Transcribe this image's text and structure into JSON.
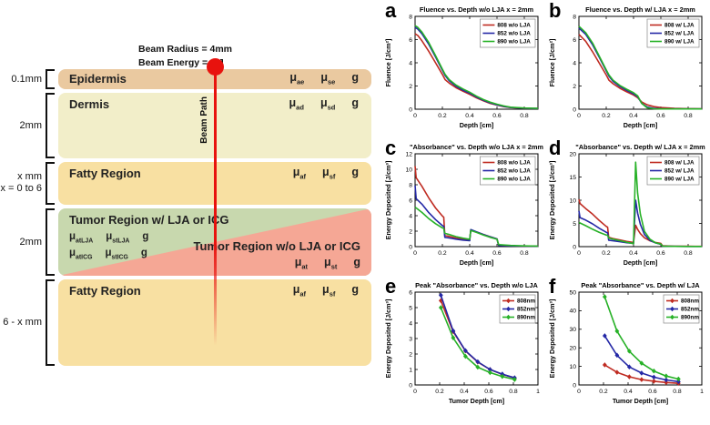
{
  "diagram": {
    "beam": {
      "line1": "Beam Radius = 4mm",
      "line2": "Beam Energy = 1 J",
      "path_label": "Beam Path"
    },
    "layers": [
      {
        "label": "Epidermis",
        "bracket_lines": [
          "0.1mm"
        ],
        "coeffs": [
          [
            "μ",
            "ae"
          ],
          [
            "μ",
            "se"
          ],
          [
            "g",
            ""
          ]
        ]
      },
      {
        "label": "Dermis",
        "bracket_lines": [
          "2mm"
        ],
        "coeffs": [
          [
            "μ",
            "ad"
          ],
          [
            "μ",
            "sd"
          ],
          [
            "g",
            ""
          ]
        ]
      },
      {
        "label": "Fatty Region",
        "bracket_lines": [
          "x mm",
          "x = 0 to 6"
        ],
        "coeffs": [
          [
            "μ",
            "af"
          ],
          [
            "μ",
            "sf"
          ],
          [
            "g",
            ""
          ]
        ]
      },
      {
        "bracket_lines": [
          "2mm"
        ],
        "left": {
          "title": "Tumor Region w/ LJA or ICG",
          "rows": [
            [
              [
                "μ",
                "atLJA"
              ],
              [
                "μ",
                "stLJA"
              ],
              [
                "g",
                ""
              ]
            ],
            [
              [
                "μ",
                "atICG"
              ],
              [
                "μ",
                "stICG"
              ],
              [
                "g",
                ""
              ]
            ]
          ]
        },
        "right": {
          "title": "Tumor Region w/o LJA or ICG",
          "rows": [
            [
              [
                "μ",
                "at"
              ],
              [
                "μ",
                "st"
              ],
              [
                "g",
                ""
              ]
            ]
          ]
        }
      },
      {
        "label": "Fatty Region",
        "bracket_lines": [
          "6 - x mm"
        ],
        "coeffs": [
          [
            "μ",
            "af"
          ],
          [
            "μ",
            "sf"
          ],
          [
            "g",
            ""
          ]
        ]
      }
    ],
    "colors": {
      "epidermis": "#eac9a0",
      "dermis": "#f2eec9",
      "fatty": "#f8e0a2",
      "tumor_with": "#c8d8ae",
      "tumor_without": "#f5a795",
      "beam": "#e8120e"
    }
  },
  "chart_data": [
    {
      "panel_label": "a",
      "type": "line",
      "title": "Fluence vs. Depth w/o LJA x = 2mm",
      "xlabel": "Depth [cm]",
      "ylabel": "Fluence [J/cm²]",
      "xlim": [
        0,
        0.9
      ],
      "ylim": [
        0,
        8
      ],
      "xticks": [
        0,
        0.2,
        0.4,
        0.6,
        0.8
      ],
      "yticks": [
        0,
        2,
        4,
        6,
        8
      ],
      "markers": false,
      "legend_position": "top-right",
      "series": [
        {
          "name": "808 w/o LJA",
          "color": "#bf2b21",
          "x": [
            0,
            0.02,
            0.05,
            0.1,
            0.15,
            0.2,
            0.22,
            0.25,
            0.3,
            0.35,
            0.4,
            0.45,
            0.5,
            0.55,
            0.6,
            0.65,
            0.7,
            0.8,
            0.9
          ],
          "y": [
            6.5,
            6.35,
            5.9,
            5.0,
            4.0,
            3.0,
            2.55,
            2.25,
            1.85,
            1.55,
            1.28,
            0.98,
            0.72,
            0.5,
            0.35,
            0.22,
            0.14,
            0.08,
            0.06
          ]
        },
        {
          "name": "852 w/o LJA",
          "color": "#2428a6",
          "x": [
            0,
            0.02,
            0.05,
            0.1,
            0.15,
            0.2,
            0.22,
            0.25,
            0.3,
            0.35,
            0.4,
            0.45,
            0.5,
            0.55,
            0.6,
            0.65,
            0.7,
            0.8,
            0.9
          ],
          "y": [
            7.05,
            6.9,
            6.5,
            5.6,
            4.5,
            3.35,
            2.9,
            2.45,
            1.98,
            1.65,
            1.38,
            1.05,
            0.78,
            0.55,
            0.38,
            0.24,
            0.15,
            0.08,
            0.06
          ]
        },
        {
          "name": "890 w/o LJA",
          "color": "#27b127",
          "x": [
            0,
            0.02,
            0.05,
            0.1,
            0.15,
            0.2,
            0.22,
            0.25,
            0.3,
            0.35,
            0.4,
            0.45,
            0.5,
            0.55,
            0.6,
            0.65,
            0.7,
            0.8,
            0.9
          ],
          "y": [
            7.2,
            7.05,
            6.65,
            5.75,
            4.62,
            3.45,
            3.0,
            2.55,
            2.08,
            1.75,
            1.47,
            1.12,
            0.83,
            0.6,
            0.43,
            0.28,
            0.17,
            0.1,
            0.07
          ]
        }
      ]
    },
    {
      "panel_label": "b",
      "type": "line",
      "title": "Fluence vs. Depth w/ LJA x = 2mm",
      "xlabel": "Depth [cm]",
      "ylabel": "Fluence [J/cm²]",
      "xlim": [
        0,
        0.9
      ],
      "ylim": [
        0,
        8
      ],
      "xticks": [
        0,
        0.2,
        0.4,
        0.6,
        0.8
      ],
      "yticks": [
        0,
        2,
        4,
        6,
        8
      ],
      "markers": false,
      "legend_position": "top-right",
      "series": [
        {
          "name": "808 w/ LJA",
          "color": "#bf2b21",
          "x": [
            0,
            0.05,
            0.1,
            0.15,
            0.2,
            0.22,
            0.25,
            0.3,
            0.35,
            0.4,
            0.43,
            0.46,
            0.5,
            0.55,
            0.6,
            0.7,
            0.8,
            0.9
          ],
          "y": [
            6.45,
            5.85,
            4.95,
            3.95,
            2.95,
            2.5,
            2.2,
            1.8,
            1.5,
            1.22,
            1.0,
            0.62,
            0.38,
            0.22,
            0.14,
            0.07,
            0.05,
            0.04
          ]
        },
        {
          "name": "852 w/ LJA",
          "color": "#2428a6",
          "x": [
            0,
            0.05,
            0.1,
            0.15,
            0.2,
            0.22,
            0.25,
            0.3,
            0.35,
            0.4,
            0.43,
            0.46,
            0.5,
            0.55,
            0.6,
            0.7,
            0.8,
            0.9
          ],
          "y": [
            7.0,
            6.45,
            5.55,
            4.45,
            3.3,
            2.85,
            2.4,
            1.95,
            1.62,
            1.32,
            1.08,
            0.5,
            0.18,
            0.07,
            0.04,
            0.02,
            0.02,
            0.02
          ]
        },
        {
          "name": "890 w/ LJA",
          "color": "#27b127",
          "x": [
            0,
            0.05,
            0.1,
            0.15,
            0.2,
            0.22,
            0.25,
            0.3,
            0.35,
            0.4,
            0.43,
            0.46,
            0.5,
            0.55,
            0.6,
            0.7,
            0.8,
            0.9
          ],
          "y": [
            7.15,
            6.6,
            5.7,
            4.55,
            3.4,
            2.95,
            2.5,
            2.05,
            1.72,
            1.42,
            1.15,
            0.5,
            0.12,
            0.04,
            0.02,
            0.02,
            0.02,
            0.02
          ]
        }
      ]
    },
    {
      "panel_label": "c",
      "type": "line",
      "title": "\"Absorbance\" vs. Depth w/o LJA x = 2mm",
      "xlabel": "Depth [cm]",
      "ylabel": "Energy Deposited [J/cm³]",
      "xlim": [
        0,
        0.9
      ],
      "ylim": [
        0,
        12
      ],
      "xticks": [
        0,
        0.2,
        0.4,
        0.6,
        0.8
      ],
      "yticks": [
        0,
        2,
        4,
        6,
        8,
        10,
        12
      ],
      "markers": false,
      "legend_position": "top-right",
      "series": [
        {
          "name": "808 w/o LJA",
          "color": "#bf2b21",
          "x": [
            0,
            0.008,
            0.05,
            0.1,
            0.15,
            0.2,
            0.21,
            0.218,
            0.25,
            0.3,
            0.35,
            0.4,
            0.408,
            0.45,
            0.5,
            0.55,
            0.6,
            0.612,
            0.7,
            0.8,
            0.9
          ],
          "y": [
            10.4,
            8.9,
            7.8,
            6.3,
            5.0,
            3.95,
            3.8,
            1.45,
            1.32,
            1.12,
            0.97,
            0.85,
            2.15,
            1.88,
            1.58,
            1.28,
            1.0,
            0.17,
            0.1,
            0.07,
            0.05
          ]
        },
        {
          "name": "852 w/o LJA",
          "color": "#2428a6",
          "x": [
            0,
            0.008,
            0.05,
            0.1,
            0.15,
            0.2,
            0.21,
            0.218,
            0.25,
            0.3,
            0.35,
            0.4,
            0.408,
            0.45,
            0.5,
            0.55,
            0.6,
            0.612,
            0.7,
            0.8,
            0.9
          ],
          "y": [
            7.9,
            6.2,
            5.5,
            4.4,
            3.5,
            2.72,
            2.62,
            1.2,
            1.12,
            0.97,
            0.85,
            0.76,
            2.2,
            1.9,
            1.58,
            1.27,
            1.0,
            0.15,
            0.09,
            0.06,
            0.05
          ]
        },
        {
          "name": "890 w/o LJA",
          "color": "#27b127",
          "x": [
            0,
            0.008,
            0.05,
            0.1,
            0.15,
            0.2,
            0.21,
            0.218,
            0.25,
            0.3,
            0.35,
            0.4,
            0.408,
            0.45,
            0.5,
            0.55,
            0.6,
            0.612,
            0.7,
            0.8,
            0.9
          ],
          "y": [
            5.1,
            5.0,
            4.42,
            3.62,
            2.97,
            2.42,
            2.36,
            1.72,
            1.56,
            1.3,
            1.1,
            0.95,
            2.08,
            1.84,
            1.5,
            1.2,
            0.95,
            0.26,
            0.15,
            0.1,
            0.07
          ]
        }
      ]
    },
    {
      "panel_label": "d",
      "type": "line",
      "title": "\"Absorbance\" vs. Depth w/ LJA x = 2mm",
      "xlabel": "Depth [cm]",
      "ylabel": "Energy Deposited [J/cm³]",
      "xlim": [
        0,
        0.9
      ],
      "ylim": [
        0,
        20
      ],
      "xticks": [
        0,
        0.2,
        0.4,
        0.6,
        0.8
      ],
      "yticks": [
        0,
        5,
        10,
        15,
        20
      ],
      "markers": false,
      "legend_position": "top-right",
      "series": [
        {
          "name": "808 w/ LJA",
          "color": "#bf2b21",
          "x": [
            0,
            0.008,
            0.05,
            0.1,
            0.15,
            0.2,
            0.21,
            0.218,
            0.25,
            0.3,
            0.35,
            0.4,
            0.405,
            0.415,
            0.43,
            0.45,
            0.48,
            0.52,
            0.56,
            0.6,
            0.612,
            0.7,
            0.8,
            0.9
          ],
          "y": [
            10.2,
            9.3,
            8.2,
            7.0,
            5.6,
            4.35,
            4.2,
            2.0,
            1.75,
            1.45,
            1.12,
            0.9,
            2.2,
            4.6,
            3.7,
            2.8,
            1.9,
            1.25,
            0.9,
            0.7,
            0.2,
            0.1,
            0.07,
            0.05
          ]
        },
        {
          "name": "852 w/ LJA",
          "color": "#2428a6",
          "x": [
            0,
            0.008,
            0.05,
            0.1,
            0.15,
            0.2,
            0.21,
            0.218,
            0.25,
            0.3,
            0.35,
            0.4,
            0.405,
            0.415,
            0.43,
            0.45,
            0.48,
            0.52,
            0.56,
            0.6,
            0.612,
            0.7,
            0.8,
            0.9
          ],
          "y": [
            7.7,
            6.25,
            5.7,
            4.9,
            3.95,
            3.1,
            3.0,
            1.4,
            1.25,
            1.05,
            0.85,
            0.7,
            4.0,
            10.0,
            7.2,
            4.8,
            2.6,
            1.35,
            0.8,
            0.5,
            0.1,
            0.06,
            0.04,
            0.03
          ]
        },
        {
          "name": "890 w/ LJA",
          "color": "#27b127",
          "x": [
            0,
            0.008,
            0.05,
            0.1,
            0.15,
            0.2,
            0.21,
            0.218,
            0.25,
            0.3,
            0.35,
            0.4,
            0.405,
            0.415,
            0.43,
            0.45,
            0.48,
            0.52,
            0.56,
            0.6,
            0.612,
            0.7,
            0.8,
            0.9
          ],
          "y": [
            5.2,
            5.1,
            4.5,
            3.75,
            3.05,
            2.5,
            2.45,
            1.85,
            1.6,
            1.28,
            0.95,
            0.65,
            7.0,
            18.2,
            11.5,
            7.0,
            3.3,
            1.6,
            0.85,
            0.55,
            0.12,
            0.06,
            0.04,
            0.03
          ]
        }
      ]
    },
    {
      "panel_label": "e",
      "type": "scatter",
      "title": "Peak \"Absorbance\" vs. Depth w/o LJA",
      "xlabel": "Tumor Depth [cm]",
      "ylabel": "Energy Deposited [J/cm³]",
      "xlim": [
        0,
        1
      ],
      "ylim": [
        0,
        6
      ],
      "xticks": [
        0,
        0.2,
        0.4,
        0.6,
        0.8,
        1
      ],
      "yticks": [
        0,
        1,
        2,
        3,
        4,
        5,
        6
      ],
      "markers": true,
      "legend_position": "top-right",
      "series": [
        {
          "name": "808nm",
          "color": "#bf2b21",
          "x": [
            0.21,
            0.31,
            0.41,
            0.51,
            0.61,
            0.71,
            0.81
          ],
          "y": [
            5.45,
            3.45,
            2.2,
            1.48,
            1.0,
            0.68,
            0.45
          ]
        },
        {
          "name": "852nm",
          "color": "#2428a6",
          "x": [
            0.21,
            0.31,
            0.41,
            0.51,
            0.61,
            0.71,
            0.81
          ],
          "y": [
            5.8,
            3.5,
            2.22,
            1.5,
            1.0,
            0.7,
            0.46
          ]
        },
        {
          "name": "890nm",
          "color": "#27b127",
          "x": [
            0.21,
            0.31,
            0.41,
            0.51,
            0.61,
            0.71,
            0.81
          ],
          "y": [
            5.0,
            3.05,
            1.85,
            1.15,
            0.8,
            0.55,
            0.35
          ]
        }
      ]
    },
    {
      "panel_label": "f",
      "type": "scatter",
      "title": "Peak \"Absorbance\" vs. Depth w/ LJA",
      "xlabel": "Tumor Depth [cm]",
      "ylabel": "Energy Deposited [J/cm³]",
      "xlim": [
        0,
        1
      ],
      "ylim": [
        0,
        50
      ],
      "xticks": [
        0,
        0.2,
        0.4,
        0.6,
        0.8,
        1
      ],
      "yticks": [
        0,
        10,
        20,
        30,
        40,
        50
      ],
      "markers": true,
      "legend_position": "top-right",
      "series": [
        {
          "name": "808nm",
          "color": "#bf2b21",
          "x": [
            0.21,
            0.31,
            0.41,
            0.51,
            0.61,
            0.71,
            0.81
          ],
          "y": [
            10.8,
            6.8,
            4.4,
            2.9,
            2.0,
            1.3,
            0.9
          ]
        },
        {
          "name": "852nm",
          "color": "#2428a6",
          "x": [
            0.21,
            0.31,
            0.41,
            0.51,
            0.61,
            0.71,
            0.81
          ],
          "y": [
            26.5,
            16.0,
            9.7,
            6.4,
            4.2,
            2.7,
            1.8
          ]
        },
        {
          "name": "890nm",
          "color": "#27b127",
          "x": [
            0.21,
            0.31,
            0.41,
            0.51,
            0.61,
            0.71,
            0.81
          ],
          "y": [
            47.5,
            29.0,
            18.2,
            11.7,
            7.5,
            4.8,
            3.2
          ]
        }
      ]
    }
  ]
}
